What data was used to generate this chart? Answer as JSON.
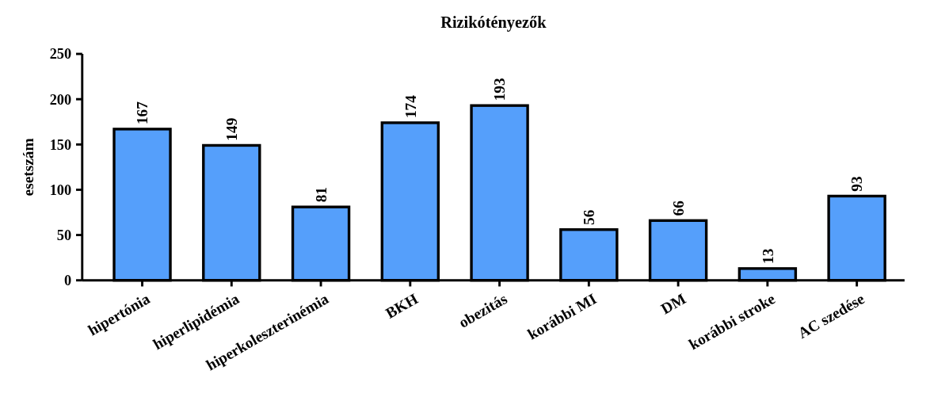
{
  "chart_data": {
    "type": "bar",
    "title": "Rizikótényezők",
    "ylabel": "esetszám",
    "categories": [
      "hipertónia",
      "hiperlipidémia",
      "hiperkoleszterinémia",
      "BKH",
      "obezitás",
      "korábbi MI",
      "DM",
      "korábbi stroke",
      "AC szedése"
    ],
    "values": [
      167,
      149,
      81,
      174,
      193,
      56,
      66,
      13,
      93
    ],
    "color": "#559ffb",
    "ylim": [
      0,
      250
    ],
    "yticks": [
      0,
      50,
      100,
      150,
      200,
      250
    ],
    "data_labels": true
  }
}
